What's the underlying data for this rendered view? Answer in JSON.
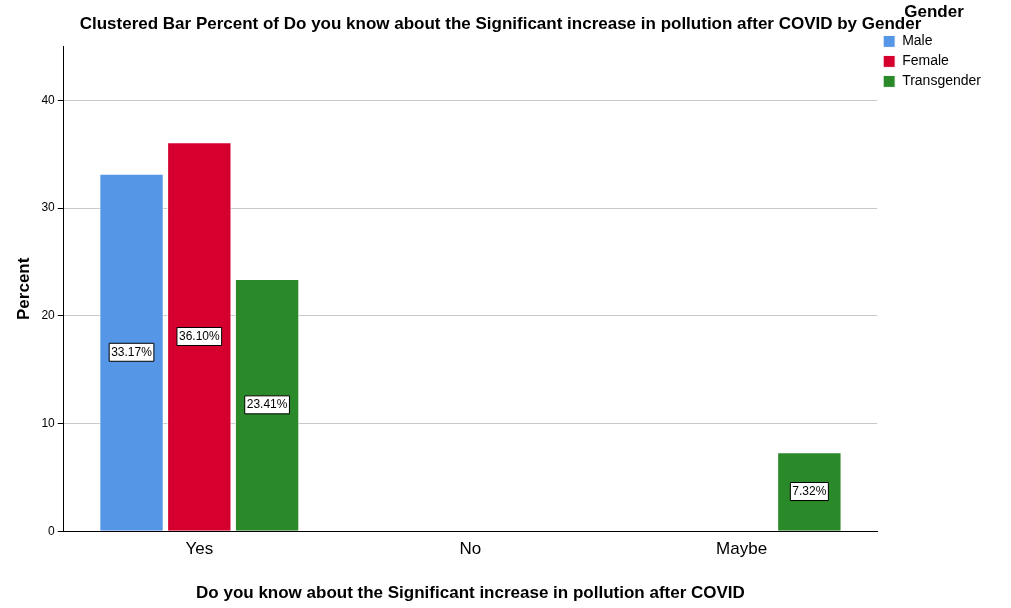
{
  "chart_data": {
    "type": "bar",
    "title": "Clustered Bar Percent of Do you know about the Significant increase in pollution after COVID by Gender",
    "xlabel": "Do you know about the Significant increase in pollution after COVID",
    "ylabel": "Percent",
    "legend_title": "Gender",
    "categories": [
      "Yes",
      "No",
      "Maybe"
    ],
    "series": [
      {
        "name": "Male",
        "color": "#5596e6",
        "values": [
          33.17,
          null,
          null
        ],
        "value_labels": [
          "33.17%",
          null,
          null
        ]
      },
      {
        "name": "Female",
        "color": "#d6002f",
        "values": [
          36.1,
          null,
          null
        ],
        "value_labels": [
          "36.10%",
          null,
          null
        ]
      },
      {
        "name": "Transgender",
        "color": "#2a8a2a",
        "values": [
          23.41,
          null,
          7.32
        ],
        "value_labels": [
          "23.41%",
          null,
          "7.32%"
        ]
      }
    ],
    "ylim": [
      0,
      45
    ],
    "yticks": [
      0,
      10,
      20,
      30,
      40
    ],
    "grid": "y",
    "legend": "top right"
  }
}
